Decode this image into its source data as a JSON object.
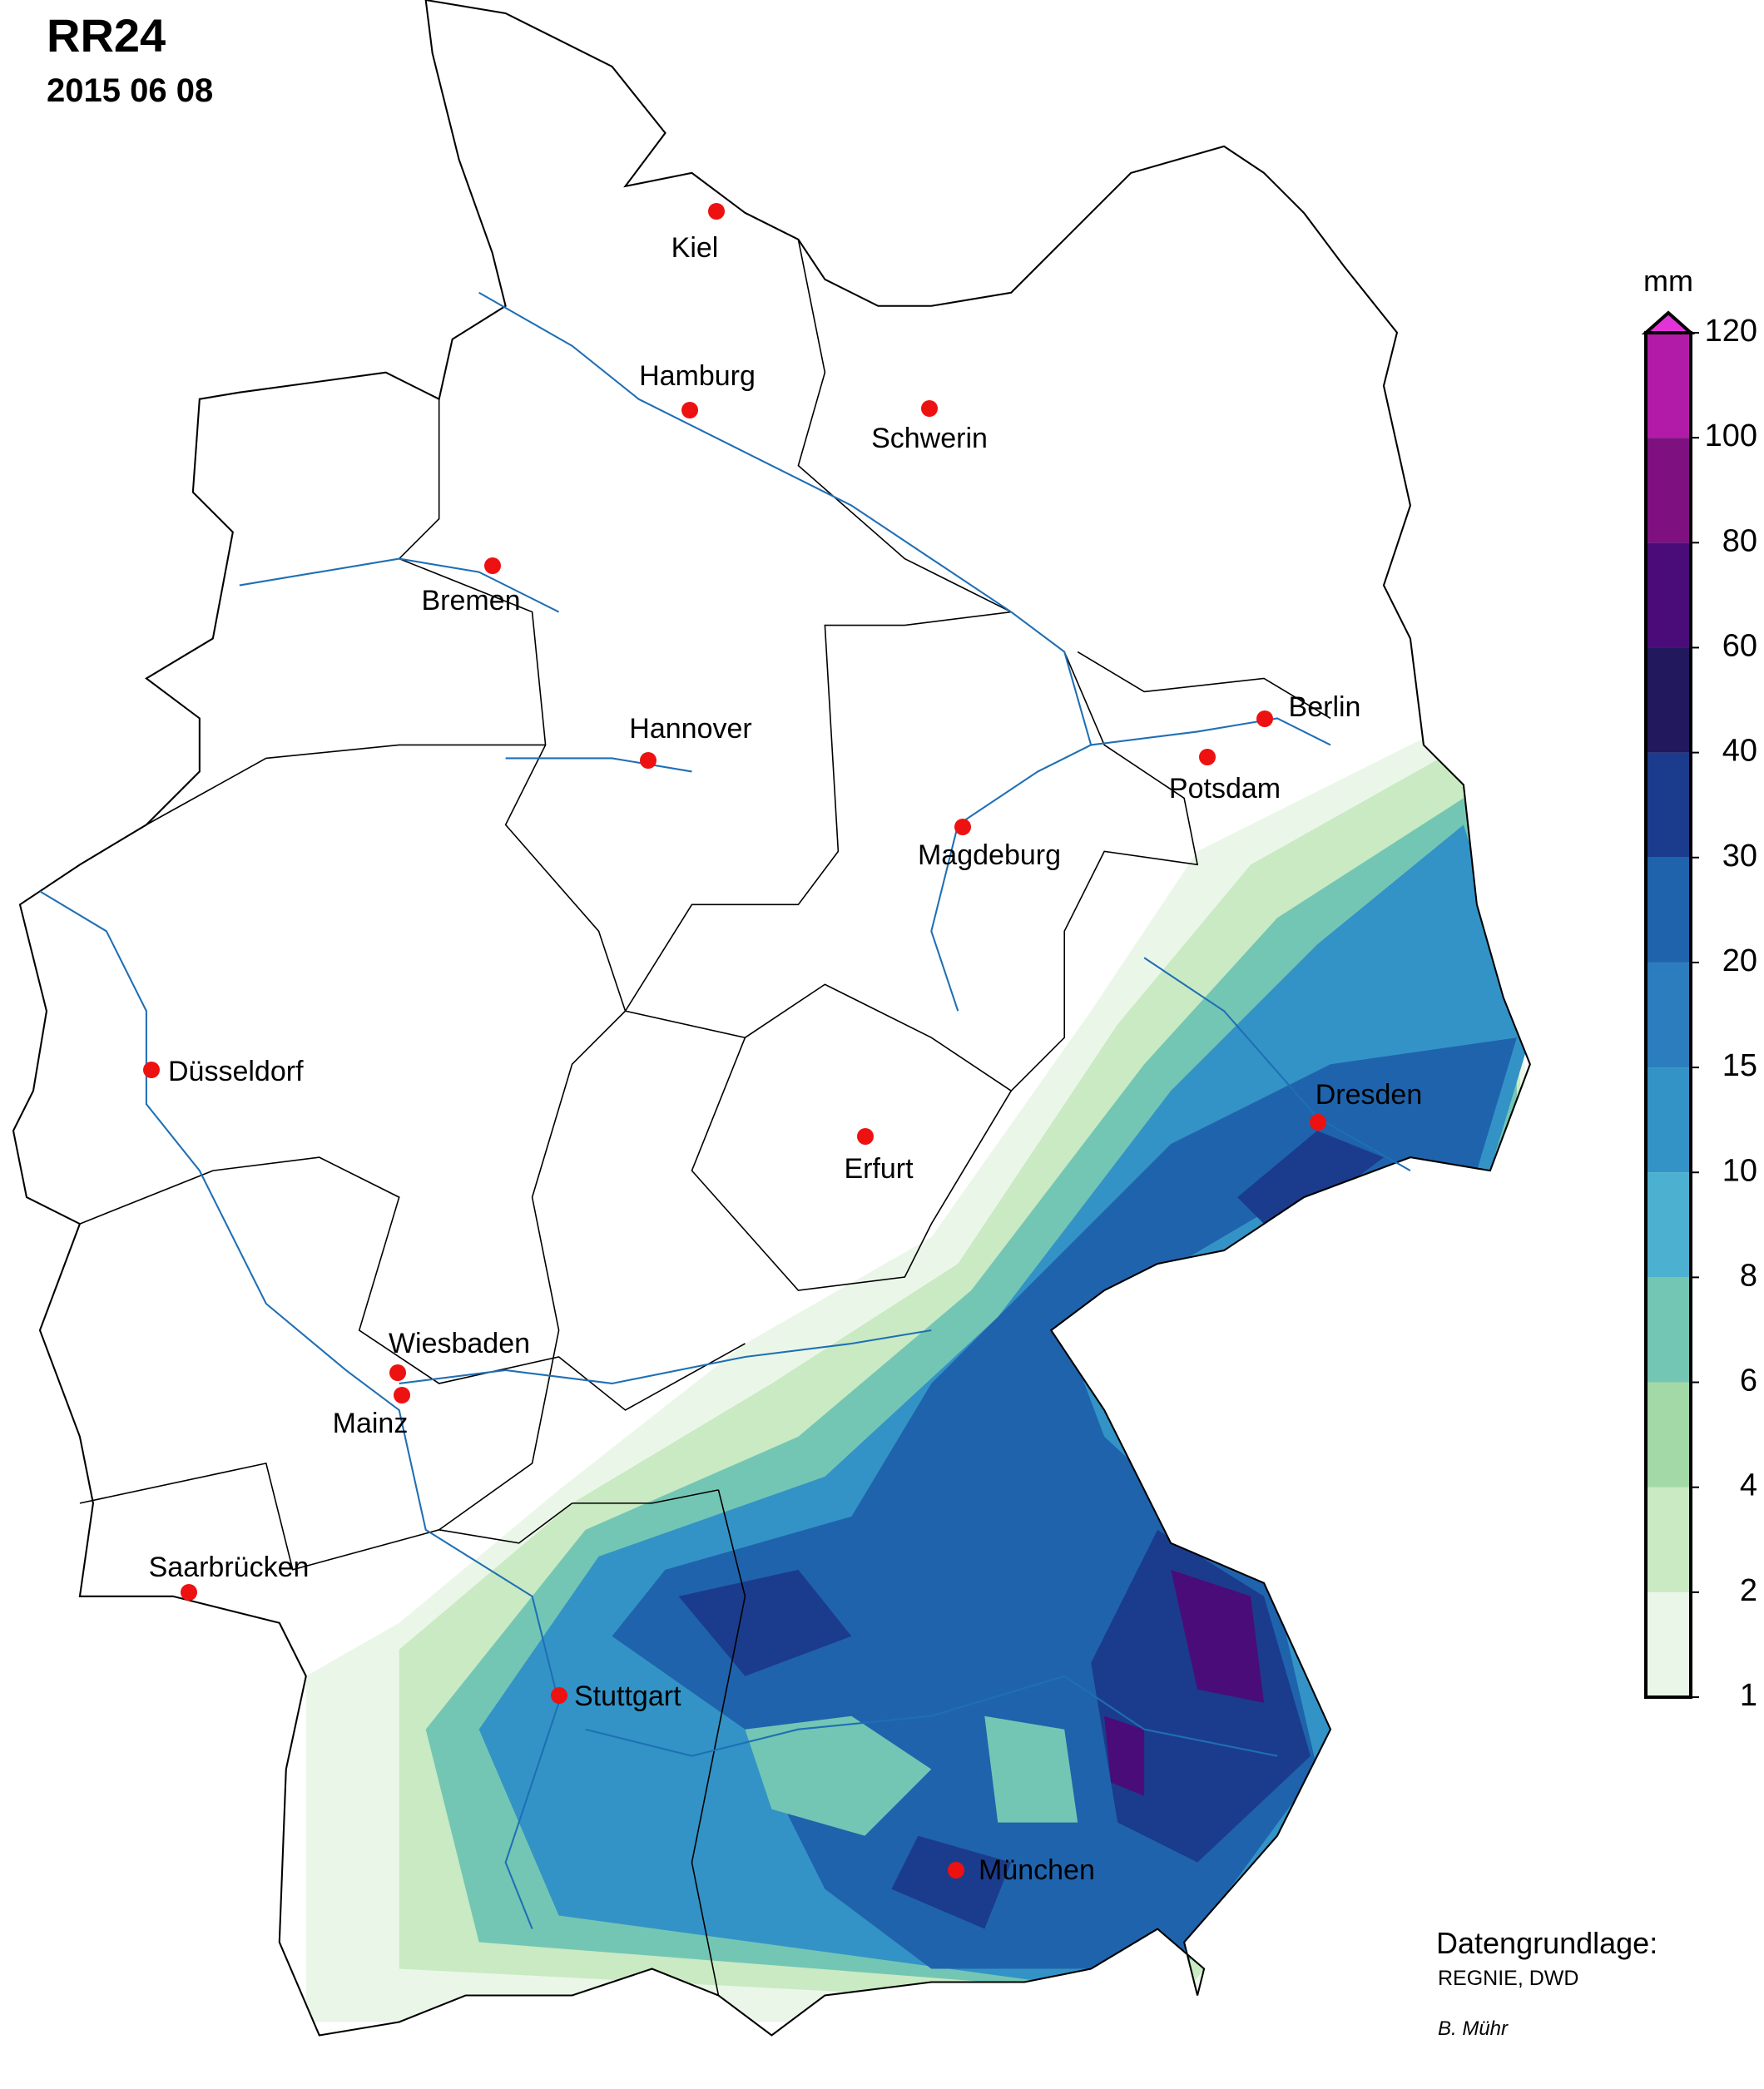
{
  "header": {
    "title": "RR24",
    "date": "2015 06 08"
  },
  "cities": [
    "Kiel",
    "Hamburg",
    "Schwerin",
    "Bremen",
    "Hannover",
    "Berlin",
    "Potsdam",
    "Magdeburg",
    "Düsseldorf",
    "Erfurt",
    "Dresden",
    "Wiesbaden",
    "Mainz",
    "Saarbrücken",
    "Stuttgart",
    "München"
  ],
  "legend": {
    "unit": "mm",
    "ticks": [
      1,
      2,
      4,
      6,
      8,
      10,
      15,
      20,
      30,
      40,
      60,
      80,
      100,
      120
    ],
    "colors": [
      "#eaf7e8",
      "#c9eac3",
      "#a3d9a6",
      "#74c6b4",
      "#4cb1d0",
      "#3393c6",
      "#2b7dbd",
      "#1f63ad",
      "#1b3c8c",
      "#22185e",
      "#4a0c78",
      "#7e107f",
      "#b21ba8"
    ],
    "over_color": "#e233d8"
  },
  "credits": {
    "source_label": "Datengrundlage:",
    "source": "REGNIE, DWD",
    "author": "B. Mühr"
  }
}
